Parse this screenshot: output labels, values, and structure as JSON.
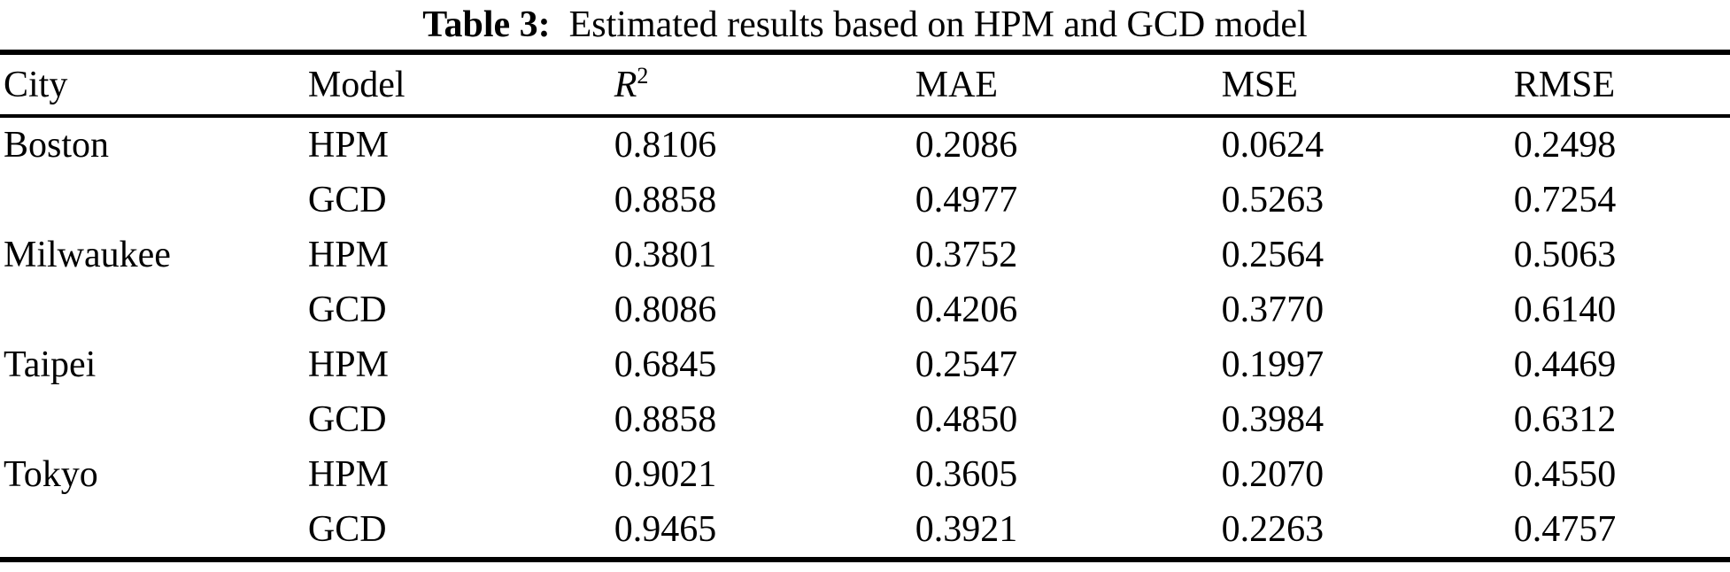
{
  "title": {
    "label": "Table 3:",
    "text": "Estimated results based on HPM and GCD model"
  },
  "table": {
    "headers": {
      "city": "City",
      "model": "Model",
      "r2_base": "R",
      "r2_sup": "2",
      "mae": "MAE",
      "mse": "MSE",
      "rmse": "RMSE"
    },
    "rows": [
      {
        "city": "Boston",
        "model": "HPM",
        "r2": "0.8106",
        "mae": "0.2086",
        "mse": "0.0624",
        "rmse": "0.2498"
      },
      {
        "city": "",
        "model": "GCD",
        "r2": "0.8858",
        "mae": "0.4977",
        "mse": "0.5263",
        "rmse": "0.7254"
      },
      {
        "city": "Milwaukee",
        "model": "HPM",
        "r2": "0.3801",
        "mae": "0.3752",
        "mse": "0.2564",
        "rmse": "0.5063"
      },
      {
        "city": "",
        "model": "GCD",
        "r2": "0.8086",
        "mae": "0.4206",
        "mse": "0.3770",
        "rmse": "0.6140"
      },
      {
        "city": "Taipei",
        "model": "HPM",
        "r2": "0.6845",
        "mae": "0.2547",
        "mse": "0.1997",
        "rmse": "0.4469"
      },
      {
        "city": "",
        "model": "GCD",
        "r2": "0.8858",
        "mae": "0.4850",
        "mse": "0.3984",
        "rmse": "0.6312"
      },
      {
        "city": "Tokyo",
        "model": "HPM",
        "r2": "0.9021",
        "mae": "0.3605",
        "mse": "0.2070",
        "rmse": "0.4550"
      },
      {
        "city": "",
        "model": "GCD",
        "r2": "0.9465",
        "mae": "0.3921",
        "mse": "0.2263",
        "rmse": "0.4757"
      }
    ]
  },
  "colors": {
    "text": "#000000",
    "background": "#ffffff",
    "rule": "#000000"
  },
  "chart_data": {
    "type": "table",
    "title": "Table 3: Estimated results based on HPM and GCD model",
    "columns": [
      "City",
      "Model",
      "R2",
      "MAE",
      "MSE",
      "RMSE"
    ],
    "rows": [
      [
        "Boston",
        "HPM",
        0.8106,
        0.2086,
        0.0624,
        0.2498
      ],
      [
        "Boston",
        "GCD",
        0.8858,
        0.4977,
        0.5263,
        0.7254
      ],
      [
        "Milwaukee",
        "HPM",
        0.3801,
        0.3752,
        0.2564,
        0.5063
      ],
      [
        "Milwaukee",
        "GCD",
        0.8086,
        0.4206,
        0.377,
        0.614
      ],
      [
        "Taipei",
        "HPM",
        0.6845,
        0.2547,
        0.1997,
        0.4469
      ],
      [
        "Taipei",
        "GCD",
        0.8858,
        0.485,
        0.3984,
        0.6312
      ],
      [
        "Tokyo",
        "HPM",
        0.9021,
        0.3605,
        0.207,
        0.455
      ],
      [
        "Tokyo",
        "GCD",
        0.9465,
        0.3921,
        0.2263,
        0.4757
      ]
    ]
  }
}
